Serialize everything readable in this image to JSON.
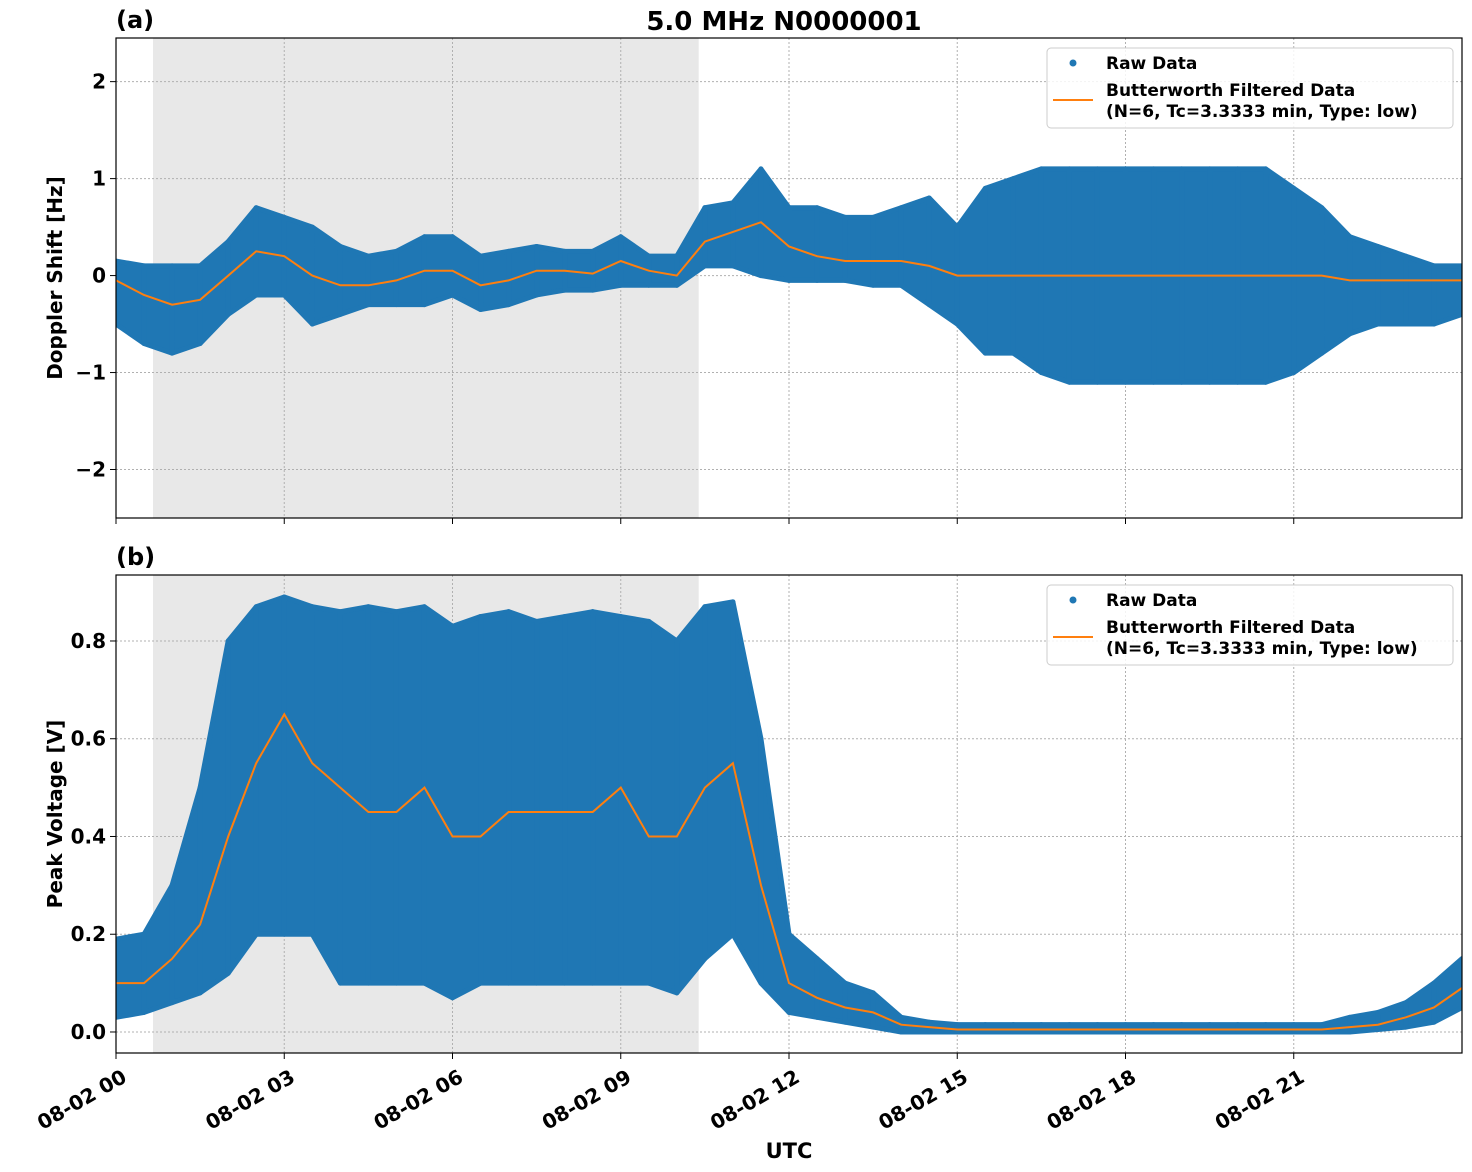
{
  "title": "5.0 MHz N0000001",
  "colors": {
    "raw": "#1f77b4",
    "filtered": "#ff7f0e",
    "shade": "#e8e8e8",
    "grid": "#b0b0b0"
  },
  "chart_data": [
    {
      "type": "scatter",
      "panel_label": "(a)",
      "ylabel": "Doppler Shift [Hz]",
      "xlabel": "",
      "x_unit": "hours UTC on 08-02",
      "xlim": [
        0,
        24
      ],
      "ylim": [
        -2.5,
        2.45
      ],
      "yticks": [
        -2,
        -1,
        0,
        1,
        2
      ],
      "ytick_labels": [
        "−2",
        "−1",
        "0",
        "1",
        "2"
      ],
      "grid": true,
      "legend_placement": "top-right",
      "legend": [
        "Raw Data",
        "Butterworth Filtered Data\n(N=6, Tc=3.3333 min, Type: low)"
      ],
      "shaded_interval_hours": [
        0.66,
        10.39
      ],
      "x": [
        0,
        0.5,
        1,
        1.5,
        2,
        2.5,
        3,
        3.5,
        4,
        4.5,
        5,
        5.5,
        6,
        6.5,
        7,
        7.5,
        8,
        8.5,
        9,
        9.5,
        10,
        10.5,
        11,
        11.5,
        12,
        12.5,
        13,
        13.5,
        14,
        14.5,
        15,
        15.5,
        16,
        16.5,
        17,
        17.5,
        18,
        18.5,
        19,
        19.5,
        20,
        20.5,
        21,
        21.5,
        22,
        22.5,
        23,
        23.5,
        24
      ],
      "series": [
        {
          "name": "Raw Data",
          "kind": "envelope",
          "low": [
            -0.5,
            -0.7,
            -0.8,
            -0.7,
            -0.4,
            -0.2,
            -0.2,
            -0.5,
            -0.4,
            -0.3,
            -0.3,
            -0.3,
            -0.2,
            -0.35,
            -0.3,
            -0.2,
            -0.15,
            -0.15,
            -0.1,
            -0.1,
            -0.1,
            0.1,
            0.1,
            0.0,
            -0.05,
            -0.05,
            -0.05,
            -0.1,
            -0.1,
            -0.3,
            -0.5,
            -0.8,
            -0.8,
            -1.0,
            -1.1,
            -1.1,
            -1.1,
            -1.1,
            -1.1,
            -1.1,
            -1.1,
            -1.1,
            -1.0,
            -0.8,
            -0.6,
            -0.5,
            -0.5,
            -0.5,
            -0.4
          ],
          "high": [
            0.15,
            0.1,
            0.1,
            0.1,
            0.35,
            0.7,
            0.6,
            0.5,
            0.3,
            0.2,
            0.25,
            0.4,
            0.4,
            0.2,
            0.25,
            0.3,
            0.25,
            0.25,
            0.4,
            0.2,
            0.2,
            0.7,
            0.75,
            1.1,
            0.7,
            0.7,
            0.6,
            0.6,
            0.7,
            0.8,
            0.5,
            0.9,
            1.0,
            1.1,
            1.1,
            1.1,
            1.1,
            1.1,
            1.1,
            1.1,
            1.1,
            1.1,
            0.9,
            0.7,
            0.4,
            0.3,
            0.2,
            0.1,
            0.1
          ]
        },
        {
          "name": "Butterworth Filtered Data",
          "kind": "line",
          "values": [
            -0.05,
            -0.2,
            -0.3,
            -0.25,
            0.0,
            0.25,
            0.2,
            0.0,
            -0.1,
            -0.1,
            -0.05,
            0.05,
            0.05,
            -0.1,
            -0.05,
            0.05,
            0.05,
            0.02,
            0.15,
            0.05,
            0.0,
            0.35,
            0.45,
            0.55,
            0.3,
            0.2,
            0.15,
            0.15,
            0.15,
            0.1,
            0.0,
            0.0,
            0.0,
            0.0,
            0.0,
            0.0,
            0.0,
            0.0,
            0.0,
            0.0,
            0.0,
            0.0,
            0.0,
            0.0,
            -0.05,
            -0.05,
            -0.05,
            -0.05,
            -0.05
          ]
        }
      ]
    },
    {
      "type": "scatter",
      "panel_label": "(b)",
      "ylabel": "Peak Voltage [V]",
      "xlabel": "UTC",
      "x_unit": "hours UTC on 08-02",
      "xlim": [
        0,
        24
      ],
      "ylim": [
        -0.043,
        0.935
      ],
      "yticks": [
        0,
        0.2,
        0.4,
        0.6,
        0.8
      ],
      "ytick_labels": [
        "0.0",
        "0.2",
        "0.4",
        "0.6",
        "0.8"
      ],
      "xticks": [
        0,
        3,
        6,
        9,
        12,
        15,
        18,
        21
      ],
      "xtick_labels": [
        "08-02 00",
        "08-02 03",
        "08-02 06",
        "08-02 09",
        "08-02 12",
        "08-02 15",
        "08-02 18",
        "08-02 21"
      ],
      "grid": true,
      "legend_placement": "top-right",
      "legend": [
        "Raw Data",
        "Butterworth Filtered Data\n(N=6, Tc=3.3333 min, Type: low)"
      ],
      "shaded_interval_hours": [
        0.66,
        10.39
      ],
      "x": [
        0,
        0.5,
        1,
        1.5,
        2,
        2.5,
        3,
        3.5,
        4,
        4.5,
        5,
        5.5,
        6,
        6.5,
        7,
        7.5,
        8,
        8.5,
        9,
        9.5,
        10,
        10.5,
        11,
        11.5,
        12,
        12.5,
        13,
        13.5,
        14,
        14.5,
        15,
        15.5,
        16,
        16.5,
        17,
        17.5,
        18,
        18.5,
        19,
        19.5,
        20,
        20.5,
        21,
        21.5,
        22,
        22.5,
        23,
        23.5,
        24
      ],
      "series": [
        {
          "name": "Raw Data",
          "kind": "envelope",
          "low": [
            0.03,
            0.04,
            0.06,
            0.08,
            0.12,
            0.2,
            0.2,
            0.2,
            0.1,
            0.1,
            0.1,
            0.1,
            0.07,
            0.1,
            0.1,
            0.1,
            0.1,
            0.1,
            0.1,
            0.1,
            0.08,
            0.15,
            0.2,
            0.1,
            0.04,
            0.03,
            0.02,
            0.01,
            0.0,
            0.0,
            0.0,
            0.0,
            0.0,
            0.0,
            0.0,
            0.0,
            0.0,
            0.0,
            0.0,
            0.0,
            0.0,
            0.0,
            0.0,
            0.0,
            0.0,
            0.005,
            0.01,
            0.02,
            0.05
          ],
          "high": [
            0.19,
            0.2,
            0.3,
            0.5,
            0.8,
            0.87,
            0.89,
            0.87,
            0.86,
            0.87,
            0.86,
            0.87,
            0.83,
            0.85,
            0.86,
            0.84,
            0.85,
            0.86,
            0.85,
            0.84,
            0.8,
            0.87,
            0.88,
            0.6,
            0.2,
            0.15,
            0.1,
            0.08,
            0.03,
            0.02,
            0.015,
            0.015,
            0.015,
            0.015,
            0.015,
            0.015,
            0.015,
            0.015,
            0.015,
            0.015,
            0.015,
            0.015,
            0.015,
            0.015,
            0.03,
            0.04,
            0.06,
            0.1,
            0.15
          ]
        },
        {
          "name": "Butterworth Filtered Data",
          "kind": "line",
          "values": [
            0.1,
            0.1,
            0.15,
            0.22,
            0.4,
            0.55,
            0.65,
            0.55,
            0.5,
            0.45,
            0.45,
            0.5,
            0.4,
            0.4,
            0.45,
            0.45,
            0.45,
            0.45,
            0.5,
            0.4,
            0.4,
            0.5,
            0.55,
            0.3,
            0.1,
            0.07,
            0.05,
            0.04,
            0.015,
            0.01,
            0.005,
            0.005,
            0.005,
            0.005,
            0.005,
            0.005,
            0.005,
            0.005,
            0.005,
            0.005,
            0.005,
            0.005,
            0.005,
            0.005,
            0.01,
            0.015,
            0.03,
            0.05,
            0.09
          ]
        }
      ]
    }
  ]
}
